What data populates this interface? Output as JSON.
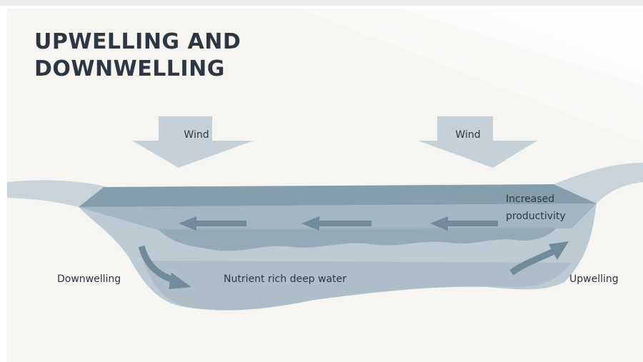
{
  "title": {
    "lines": [
      "UPWELLING AND",
      "DOWNWELLING"
    ]
  },
  "labels": {
    "wind_left": "Wind",
    "wind_right": "Wind",
    "productivity": [
      "Increased",
      "productivity"
    ],
    "downwelling": "Downwelling",
    "deep_water": "Nutrient rich deep water",
    "upwelling": "Upwelling"
  }
}
